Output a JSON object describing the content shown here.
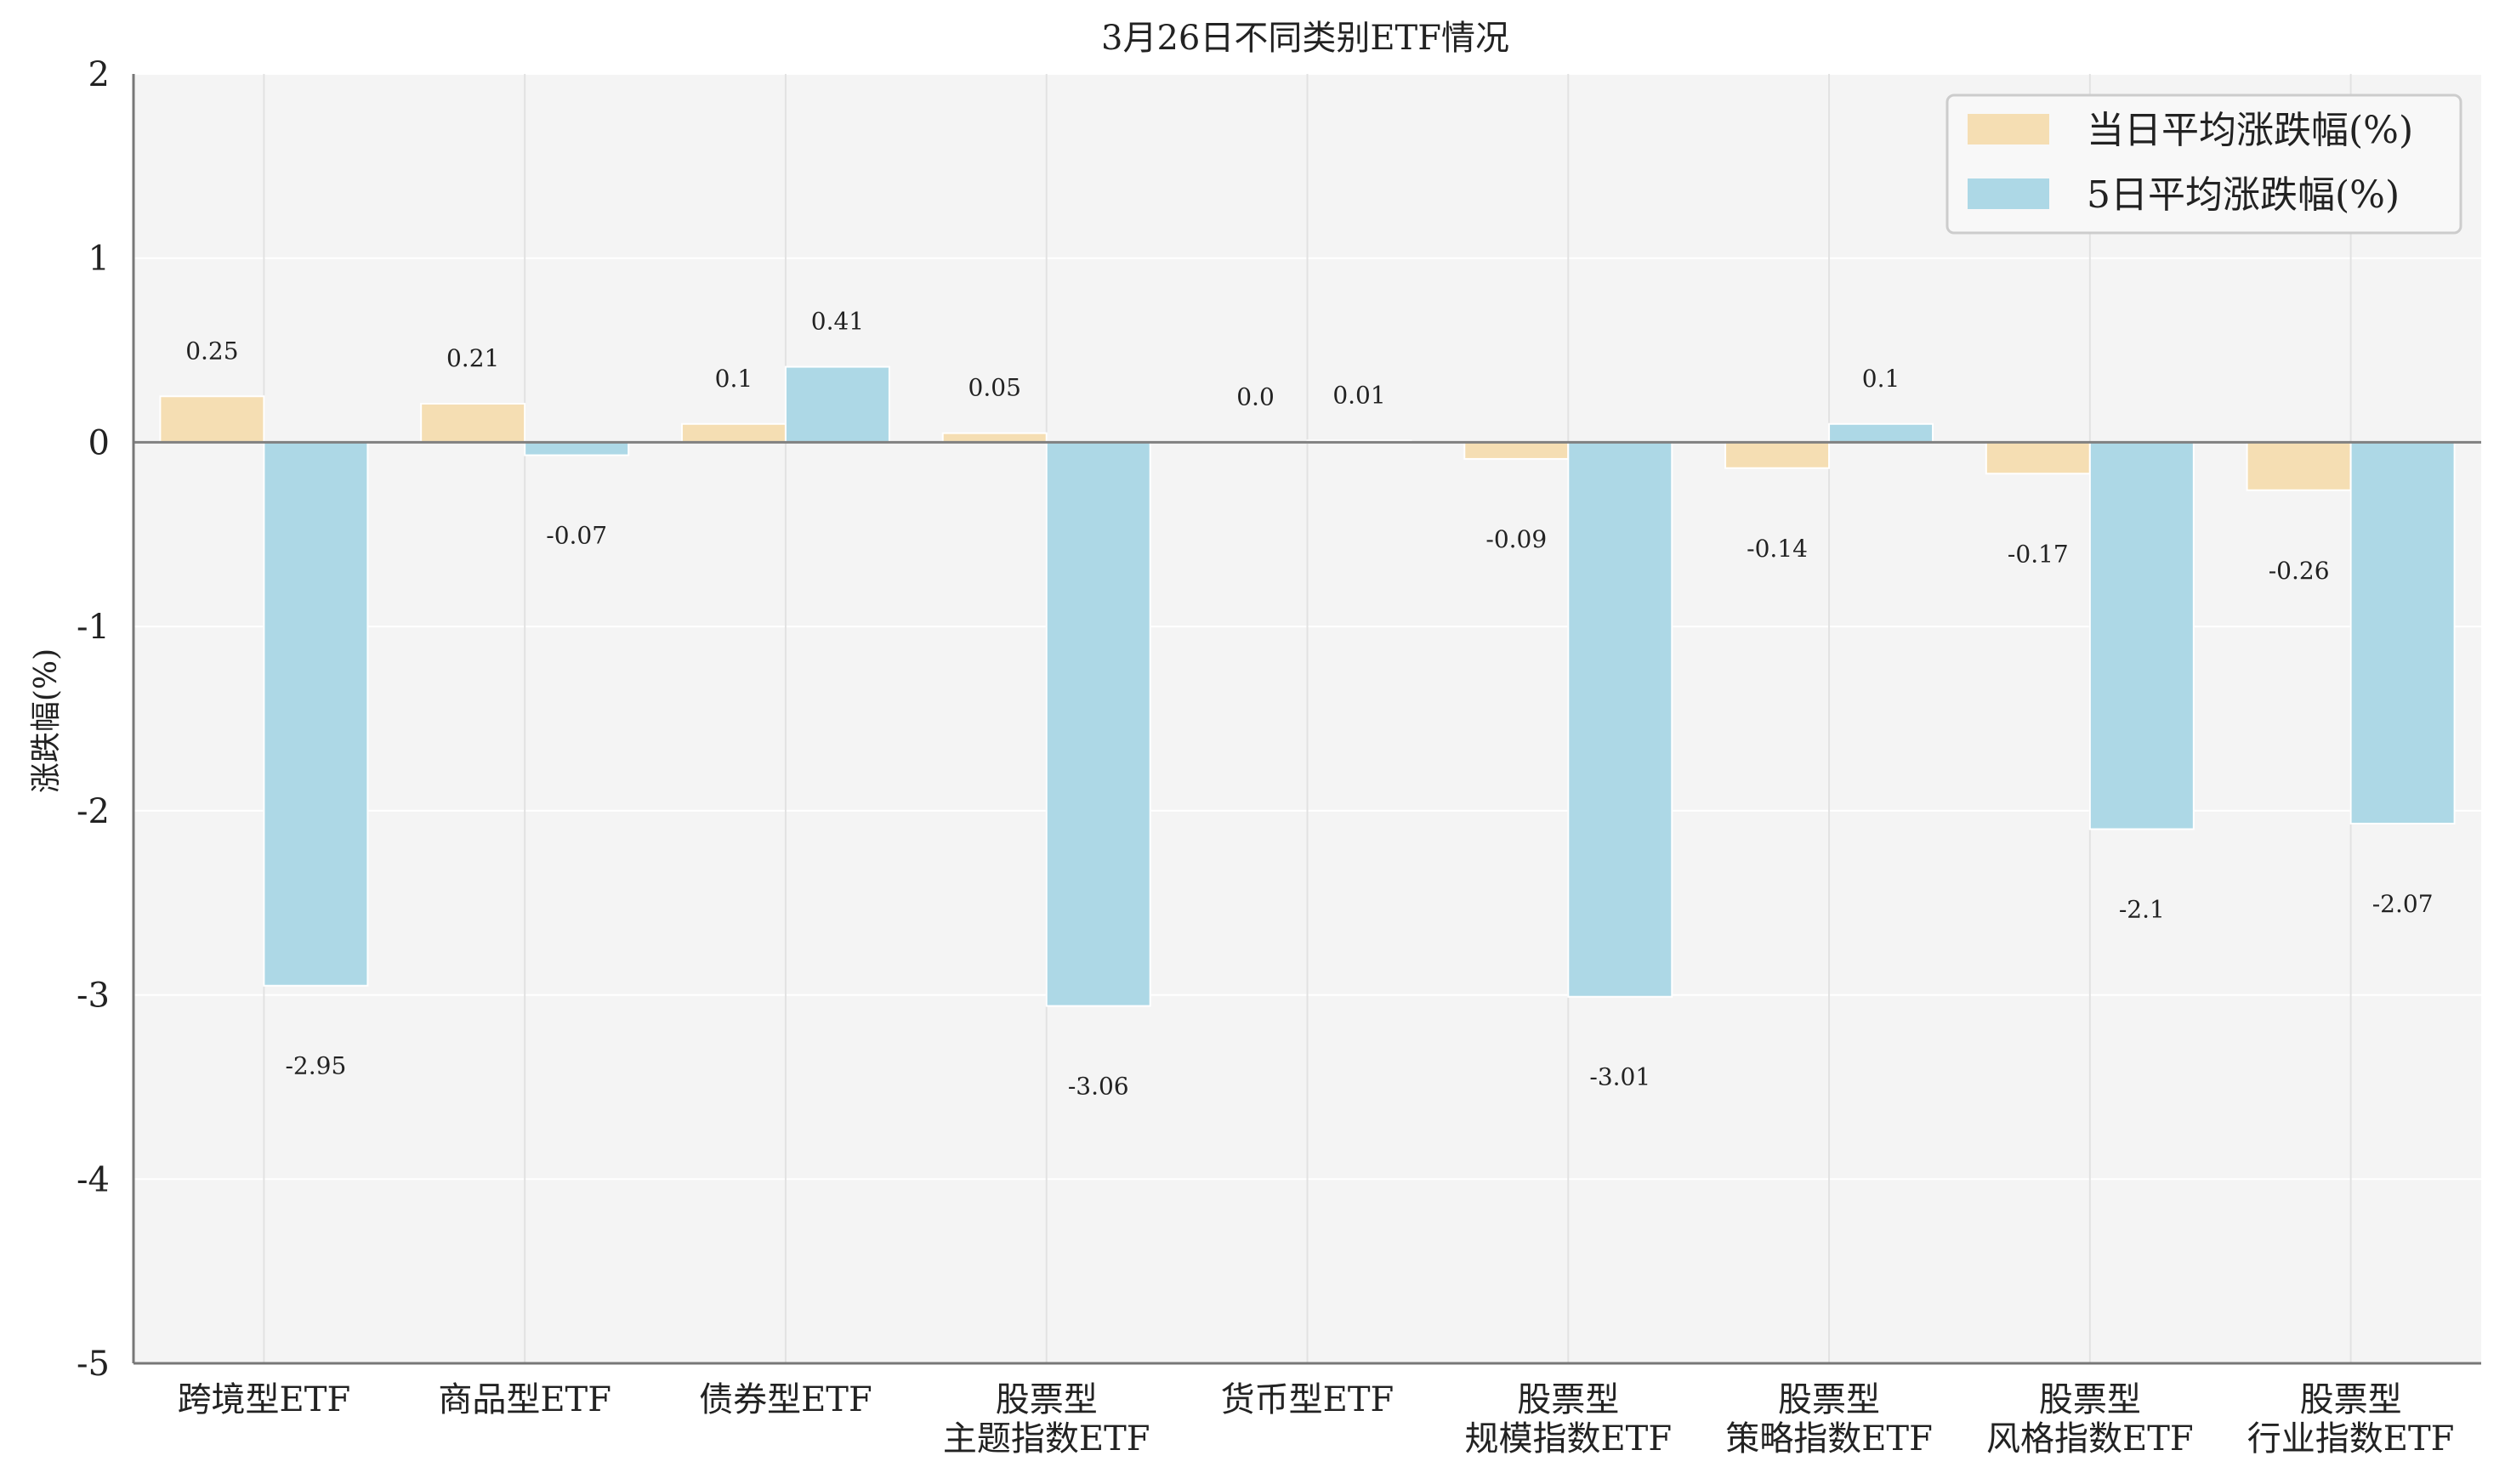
{
  "chart_data": {
    "type": "bar",
    "title": "3月26日不同类别ETF情况",
    "xlabel": "",
    "ylabel": "涨跌幅(%)",
    "ylim": [
      -5,
      2
    ],
    "yticks": [
      -5,
      -4,
      -3,
      -2,
      -1,
      0,
      1,
      2
    ],
    "grid": true,
    "legend_position": "top-right",
    "categories": [
      [
        "跨境型ETF"
      ],
      [
        "商品型ETF"
      ],
      [
        "债券型ETF"
      ],
      [
        "股票型",
        "主题指数ETF"
      ],
      [
        "货币型ETF"
      ],
      [
        "股票型",
        "规模指数ETF"
      ],
      [
        "股票型",
        "策略指数ETF"
      ],
      [
        "股票型",
        "风格指数ETF"
      ],
      [
        "股票型",
        "行业指数ETF"
      ]
    ],
    "series": [
      {
        "name": "当日平均涨跌幅(%)",
        "color": "#f5deb3",
        "values": [
          0.25,
          0.21,
          0.1,
          0.05,
          0.0,
          -0.09,
          -0.14,
          -0.17,
          -0.26
        ],
        "labels": [
          "0.25",
          "0.21",
          "0.1",
          "0.05",
          "0.0",
          "-0.09",
          "-0.14",
          "-0.17",
          "-0.26"
        ]
      },
      {
        "name": "5日平均涨跌幅(%)",
        "color": "#add8e6",
        "values": [
          -2.95,
          -0.07,
          0.41,
          -3.06,
          0.01,
          -3.01,
          0.1,
          -2.1,
          -2.07
        ],
        "labels": [
          "-2.95",
          "-0.07",
          "0.41",
          "-3.06",
          "0.01",
          "-3.01",
          "0.1",
          "-2.1",
          "-2.07"
        ]
      }
    ]
  }
}
